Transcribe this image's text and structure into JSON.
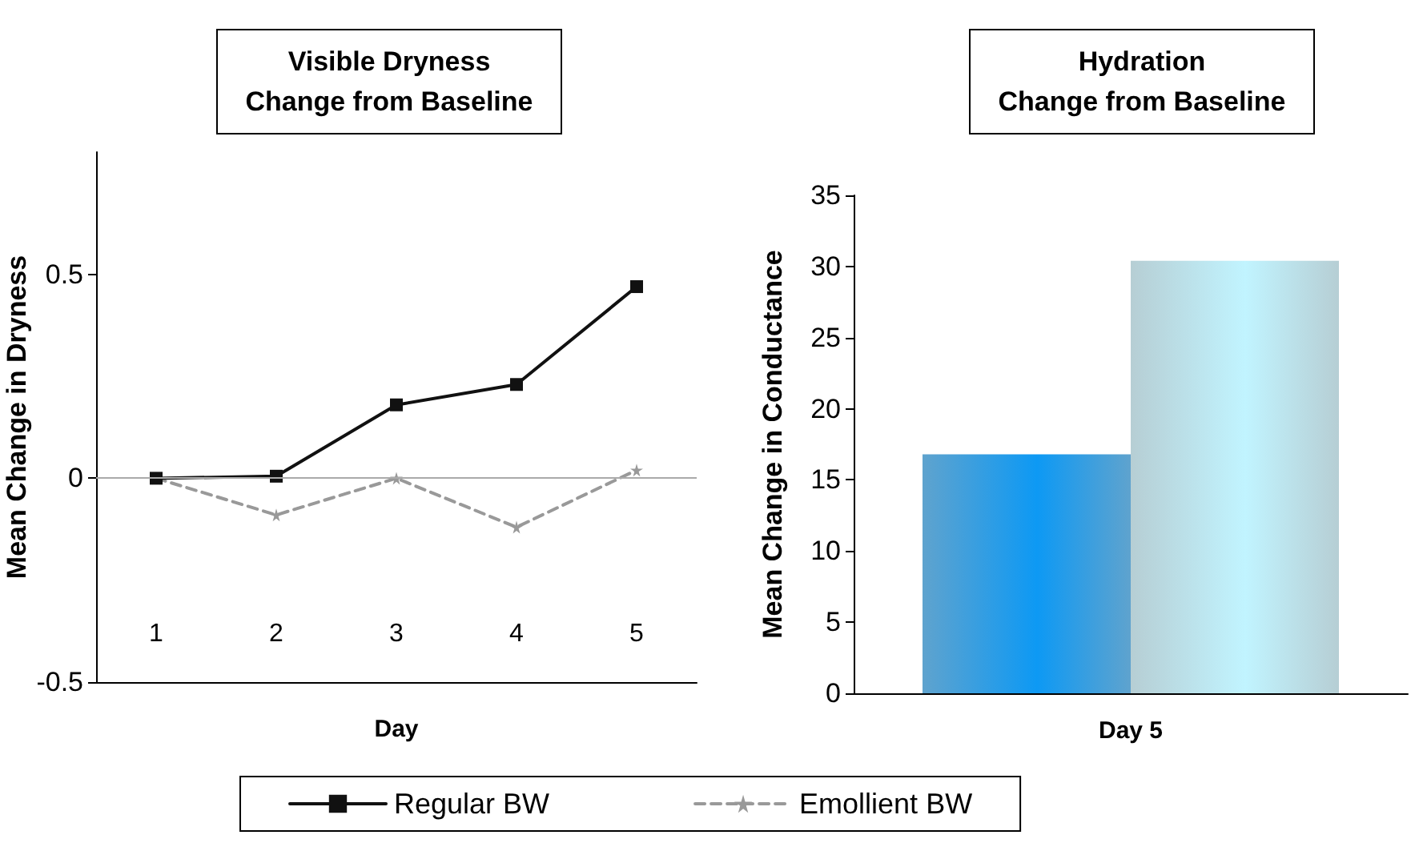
{
  "chart_data": [
    {
      "type": "line",
      "title": "Visible Dryness\nChange from Baseline",
      "xlabel": "Day",
      "ylabel": "Mean Change in Dryness",
      "categories": [
        "1",
        "2",
        "3",
        "4",
        "5"
      ],
      "ylim": [
        -0.5,
        0.8
      ],
      "yticks": [
        -0.5,
        0,
        0.5
      ],
      "series": [
        {
          "name": "Regular BW",
          "color": "#111111",
          "values": [
            0,
            0.005,
            0.18,
            0.23,
            0.47
          ],
          "marker": "square",
          "line_style": "solid"
        },
        {
          "name": "Emollient BW",
          "color": "#999999",
          "values": [
            0,
            -0.09,
            0,
            -0.12,
            0.02
          ],
          "marker": "star",
          "line_style": "dashed"
        }
      ],
      "ref_lines": [
        {
          "axis": "y",
          "value": 0,
          "color": "#aaaaaa"
        }
      ],
      "legend": "bottom",
      "grid": false
    },
    {
      "type": "bar",
      "title": "Hydration\nChange from Baseline",
      "ylabel": "Mean Change in Conductance",
      "categories": [
        "Day 5"
      ],
      "ylim": [
        0,
        35
      ],
      "yticks": [
        0,
        5,
        10,
        15,
        20,
        25,
        30,
        35
      ],
      "series": [
        {
          "color": "#0a72b5",
          "values": [
            16.8
          ]
        },
        {
          "color": "#8fb5be",
          "values": [
            30.4
          ]
        }
      ],
      "grid": false
    }
  ]
}
